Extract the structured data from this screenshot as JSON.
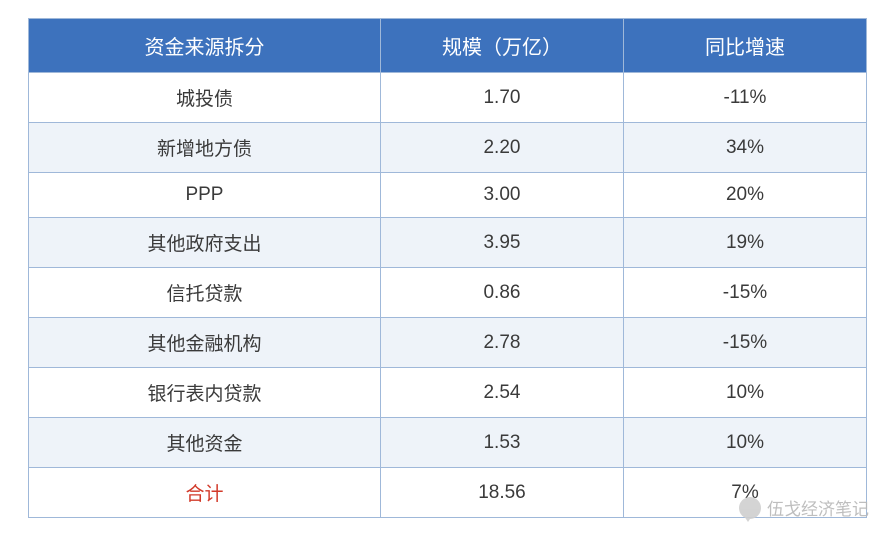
{
  "table": {
    "header_bg": "#3d72bd",
    "header_color": "#ffffff",
    "border_color": "#9fb8d9",
    "alt_row_bg": "#eef3f9",
    "text_color": "#3a3a3a",
    "total_label_color": "#d23a2a",
    "font_size_header": 20,
    "font_size_cell": 19,
    "columns": [
      {
        "key": "name",
        "label": "资金来源拆分",
        "width_pct": 42
      },
      {
        "key": "scale",
        "label": "规模（万亿）",
        "width_pct": 29
      },
      {
        "key": "growth",
        "label": "同比增速",
        "width_pct": 29
      }
    ],
    "rows": [
      {
        "name": "城投债",
        "scale": "1.70",
        "growth": "-11%"
      },
      {
        "name": "新增地方债",
        "scale": "2.20",
        "growth": "34%"
      },
      {
        "name": "PPP",
        "scale": "3.00",
        "growth": "20%"
      },
      {
        "name": "其他政府支出",
        "scale": "3.95",
        "growth": "19%"
      },
      {
        "name": "信托贷款",
        "scale": "0.86",
        "growth": "-15%"
      },
      {
        "name": "其他金融机构",
        "scale": "2.78",
        "growth": "-15%"
      },
      {
        "name": "银行表内贷款",
        "scale": "2.54",
        "growth": "10%"
      },
      {
        "name": "其他资金",
        "scale": "1.53",
        "growth": "10%"
      }
    ],
    "total": {
      "name": "合计",
      "scale": "18.56",
      "growth": "7%"
    }
  },
  "watermark": {
    "text": "伍戈经济笔记",
    "color": "#b8b8b8"
  }
}
